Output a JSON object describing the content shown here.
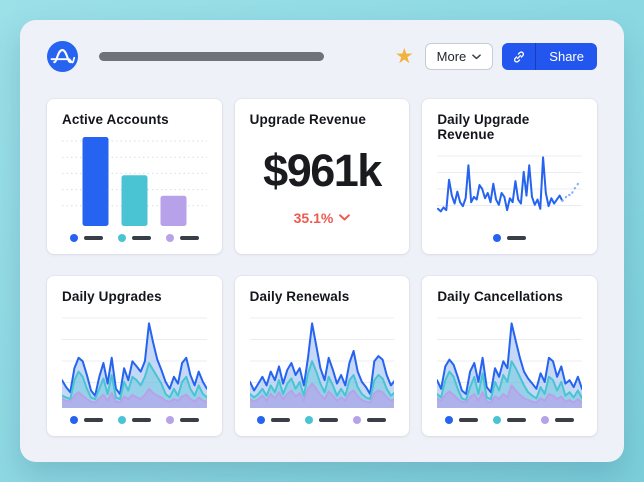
{
  "header": {
    "star_icon": "★",
    "more_label": "More",
    "share_label": "Share"
  },
  "colors": {
    "blue": "#2563f0",
    "teal": "#4ac3d3",
    "purple": "#b7a2e9",
    "forecast_blue": "#8fb0f2",
    "red": "#ee5a4f",
    "share_blue": "#2356ef",
    "star": "#f2b23d"
  },
  "cards": [
    {
      "title": "Active Accounts",
      "chart": {
        "type": "bar",
        "categories": [
          "",
          "",
          ""
        ],
        "values": [
          100,
          57,
          34
        ],
        "colors": [
          "#2563f0",
          "#4ac3d3",
          "#b7a2e9"
        ],
        "gridlines": 5,
        "grid_style": "dotted",
        "legend_colors": [
          "#2563f0",
          "#4ac3d3",
          "#b7a2e9"
        ]
      }
    },
    {
      "title": "Upgrade Revenue",
      "value": "$961k",
      "change": "35.1%",
      "change_direction": "down"
    },
    {
      "title": "Daily Upgrade Revenue",
      "chart": {
        "type": "line",
        "color": "#2563f0",
        "gridlines": 4,
        "values": [
          20,
          16,
          22,
          18,
          64,
          40,
          28,
          46,
          30,
          24,
          36,
          86,
          30,
          38,
          34,
          56,
          50,
          36,
          44,
          30,
          58,
          34,
          26,
          44,
          38,
          18,
          36,
          30,
          62,
          34,
          28,
          76,
          40,
          86,
          38,
          26,
          34,
          20,
          98,
          44,
          24,
          36,
          28,
          34,
          40,
          32
        ],
        "forecast": [
          36,
          42,
          40,
          48,
          54,
          60
        ],
        "legend_colors": [
          "#2563f0"
        ]
      }
    },
    {
      "title": "Daily Upgrades",
      "chart": {
        "type": "area",
        "gridlines": 4,
        "series": [
          {
            "name": "series-1",
            "color": "#2563f0",
            "fill": "rgba(140,180,240,0.50)",
            "values": [
              30,
              22,
              16,
              44,
              56,
              52,
              36,
              18,
              12,
              34,
              50,
              26,
              56,
              20,
              14,
              44,
              30,
              52,
              46,
              40,
              52,
              96,
              74,
              54,
              42,
              28,
              20,
              34,
              26,
              50,
              56,
              36,
              24,
              40,
              28,
              20
            ]
          },
          {
            "name": "series-2",
            "color": "#4ac3d3",
            "fill": "rgba(95,200,214,0.45)",
            "values": [
              12,
              10,
              8,
              30,
              40,
              34,
              20,
              10,
              8,
              20,
              32,
              14,
              36,
              10,
              8,
              28,
              18,
              34,
              30,
              24,
              34,
              50,
              42,
              34,
              26,
              14,
              10,
              20,
              12,
              28,
              34,
              20,
              12,
              24,
              14,
              10
            ]
          },
          {
            "name": "series-3",
            "color": "#b7a2e9",
            "fill": "rgba(186,162,235,0.65)",
            "values": [
              8,
              6,
              5,
              12,
              16,
              12,
              8,
              5,
              4,
              9,
              13,
              6,
              15,
              5,
              4,
              11,
              8,
              13,
              10,
              8,
              13,
              20,
              15,
              12,
              10,
              6,
              5,
              8,
              6,
              11,
              13,
              8,
              5,
              10,
              6,
              5
            ]
          }
        ],
        "legend_colors": [
          "#2563f0",
          "#4ac3d3",
          "#b7a2e9"
        ]
      }
    },
    {
      "title": "Daily Renewals",
      "chart": {
        "type": "area",
        "gridlines": 4,
        "series": [
          {
            "name": "series-1",
            "color": "#2563f0",
            "fill": "rgba(140,180,240,0.50)",
            "values": [
              28,
              18,
              26,
              34,
              24,
              40,
              30,
              46,
              26,
              42,
              50,
              36,
              44,
              24,
              56,
              96,
              70,
              44,
              30,
              56,
              42,
              26,
              36,
              24,
              50,
              64,
              40,
              28,
              22,
              14,
              52,
              58,
              54,
              36,
              24,
              30
            ]
          },
          {
            "name": "series-2",
            "color": "#4ac3d3",
            "fill": "rgba(95,200,214,0.45)",
            "values": [
              14,
              10,
              14,
              20,
              12,
              24,
              16,
              30,
              14,
              26,
              32,
              20,
              28,
              12,
              38,
              52,
              40,
              26,
              16,
              34,
              24,
              12,
              20,
              12,
              30,
              36,
              22,
              14,
              10,
              8,
              30,
              36,
              32,
              20,
              12,
              16
            ]
          },
          {
            "name": "series-3",
            "color": "#b7a2e9",
            "fill": "rgba(186,162,235,0.65)",
            "values": [
              8,
              5,
              8,
              12,
              6,
              14,
              9,
              16,
              8,
              14,
              18,
              11,
              15,
              6,
              20,
              26,
              20,
              13,
              8,
              17,
              12,
              6,
              10,
              6,
              15,
              18,
              11,
              7,
              5,
              4,
              15,
              18,
              16,
              10,
              6,
              8
            ]
          }
        ],
        "legend_colors": [
          "#2563f0",
          "#4ac3d3",
          "#b7a2e9"
        ]
      }
    },
    {
      "title": "Daily Cancellations",
      "chart": {
        "type": "area",
        "gridlines": 4,
        "series": [
          {
            "name": "series-1",
            "color": "#2563f0",
            "fill": "rgba(140,180,240,0.50)",
            "values": [
              30,
              20,
              46,
              54,
              48,
              34,
              18,
              14,
              40,
              50,
              28,
              56,
              22,
              16,
              44,
              34,
              52,
              44,
              96,
              76,
              56,
              40,
              32,
              26,
              20,
              38,
              28,
              56,
              52,
              34,
              46,
              26,
              30,
              22,
              34,
              20
            ]
          },
          {
            "name": "series-2",
            "color": "#4ac3d3",
            "fill": "rgba(95,200,214,0.45)",
            "values": [
              14,
              10,
              30,
              40,
              34,
              20,
              9,
              7,
              22,
              34,
              14,
              38,
              10,
              8,
              28,
              18,
              36,
              28,
              52,
              44,
              34,
              24,
              16,
              12,
              9,
              22,
              14,
              34,
              30,
              18,
              28,
              12,
              16,
              10,
              18,
              9
            ]
          },
          {
            "name": "series-3",
            "color": "#b7a2e9",
            "fill": "rgba(186,162,235,0.65)",
            "values": [
              9,
              6,
              13,
              17,
              13,
              8,
              5,
              4,
              10,
              14,
              6,
              16,
              5,
              4,
              11,
              8,
              14,
              10,
              24,
              18,
              13,
              9,
              7,
              5,
              4,
              9,
              6,
              14,
              12,
              8,
              11,
              5,
              7,
              4,
              8,
              4
            ]
          }
        ],
        "legend_colors": [
          "#2563f0",
          "#4ac3d3",
          "#b7a2e9"
        ]
      }
    }
  ]
}
